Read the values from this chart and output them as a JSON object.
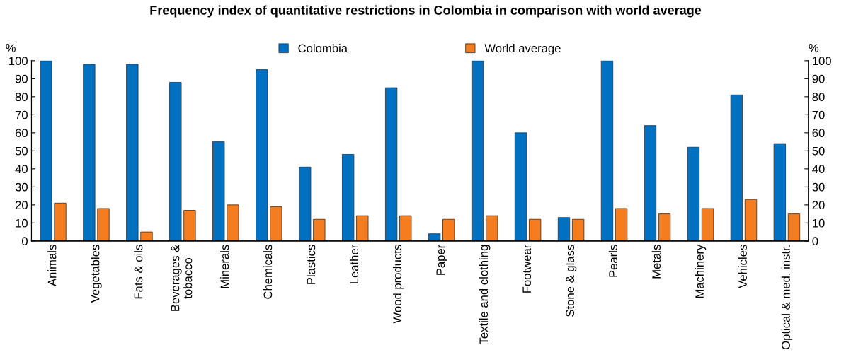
{
  "chart_data": {
    "type": "bar",
    "title": "Frequency index of quantitative restrictions in Colombia in comparison with world average",
    "ylabel": "%",
    "y2label": "%",
    "categories": [
      "Animals",
      "Vegetables",
      "Fats & oils",
      "Beverages &\ntobacco",
      "Minerals",
      "Chemicals",
      "Plastics",
      "Leather",
      "Wood products",
      "Paper",
      "Textile and clothing",
      "Footwear",
      "Stone & glass",
      "Pearls",
      "Metals",
      "Machinery",
      "Vehicles",
      "Optical & med. instr."
    ],
    "series": [
      {
        "name": "Colombia",
        "color": "#0070c0",
        "values": [
          100,
          98,
          98,
          88,
          55,
          95,
          41,
          48,
          85,
          4,
          100,
          60,
          13,
          100,
          64,
          52,
          81,
          54
        ]
      },
      {
        "name": "World average",
        "color": "#f47d20",
        "values": [
          21,
          18,
          5,
          17,
          20,
          19,
          12,
          14,
          14,
          12,
          14,
          12,
          12,
          18,
          15,
          18,
          23,
          15
        ]
      }
    ],
    "ylim": [
      0,
      100
    ],
    "yticks": [
      0,
      10,
      20,
      30,
      40,
      50,
      60,
      70,
      80,
      90,
      100
    ],
    "y2lim": [
      0,
      100
    ],
    "y2ticks": [
      0,
      10,
      20,
      30,
      40,
      50,
      60,
      70,
      80,
      90,
      100
    ],
    "grid": false,
    "legend": "top"
  }
}
